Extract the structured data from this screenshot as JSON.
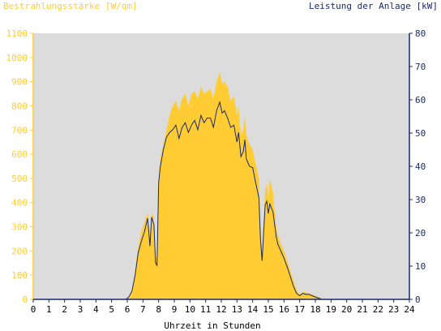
{
  "chart_data": {
    "type": "area",
    "left_axis_title": "Bestrahlungsstärke [W/qm]",
    "right_axis_title": "Leistung der Anlage [kW]",
    "xlabel": "Uhrzeit in Stunden",
    "x_ticks": [
      "0",
      "1",
      "2",
      "3",
      "4",
      "5",
      "6",
      "7",
      "8",
      "9",
      "10",
      "11",
      "12",
      "13",
      "14",
      "15",
      "16",
      "17",
      "18",
      "19",
      "20",
      "21",
      "22",
      "23",
      "24"
    ],
    "y_left_ticks": [
      "0",
      "100",
      "200",
      "300",
      "400",
      "500",
      "600",
      "700",
      "800",
      "900",
      "1000",
      "1100"
    ],
    "y_right_ticks": [
      "0",
      "10",
      "20",
      "30",
      "40",
      "50",
      "60",
      "70",
      "80"
    ],
    "xlim": [
      0,
      24
    ],
    "ylim_left": [
      0,
      1100
    ],
    "ylim_right": [
      0,
      80
    ],
    "grid": false,
    "series": [
      {
        "name": "Bestrahlungsstärke [W/qm]",
        "axis": "left",
        "kind": "area",
        "color": "#FFCC33",
        "x": [
          0,
          5.9,
          6.1,
          6.3,
          6.5,
          6.7,
          6.9,
          7.1,
          7.3,
          7.45,
          7.55,
          7.7,
          7.8,
          7.9,
          8.0,
          8.1,
          8.3,
          8.5,
          8.7,
          8.9,
          9.1,
          9.3,
          9.5,
          9.7,
          9.9,
          10.1,
          10.3,
          10.5,
          10.7,
          10.9,
          11.1,
          11.3,
          11.5,
          11.7,
          11.9,
          12.05,
          12.2,
          12.4,
          12.6,
          12.8,
          13.0,
          13.1,
          13.25,
          13.4,
          13.5,
          13.6,
          13.8,
          14.0,
          14.2,
          14.4,
          14.5,
          14.6,
          14.8,
          14.9,
          15.0,
          15.1,
          15.3,
          15.5,
          15.6,
          15.8,
          16.0,
          16.2,
          16.4,
          16.6,
          16.8,
          17.0,
          17.2,
          17.4,
          17.6,
          17.8,
          18.0,
          18.2,
          18.4,
          18.5,
          24
        ],
        "values": [
          0,
          0,
          10,
          40,
          120,
          220,
          280,
          320,
          360,
          250,
          360,
          340,
          180,
          170,
          500,
          580,
          640,
          700,
          760,
          800,
          820,
          780,
          830,
          850,
          800,
          850,
          860,
          830,
          880,
          850,
          860,
          870,
          830,
          900,
          940,
          890,
          900,
          880,
          820,
          840,
          760,
          800,
          680,
          700,
          760,
          680,
          640,
          620,
          560,
          500,
          300,
          180,
          450,
          480,
          420,
          500,
          440,
          300,
          270,
          230,
          200,
          160,
          120,
          80,
          40,
          20,
          30,
          30,
          25,
          20,
          15,
          10,
          5,
          0,
          0
        ]
      },
      {
        "name": "Leistung der Anlage [kW]",
        "axis": "right",
        "kind": "line",
        "color": "#1A2A6C",
        "x": [
          0,
          5.9,
          6.1,
          6.3,
          6.5,
          6.7,
          6.9,
          7.1,
          7.3,
          7.45,
          7.55,
          7.7,
          7.8,
          7.9,
          8.0,
          8.1,
          8.3,
          8.5,
          8.7,
          8.9,
          9.1,
          9.3,
          9.5,
          9.7,
          9.9,
          10.1,
          10.3,
          10.5,
          10.7,
          10.9,
          11.1,
          11.3,
          11.5,
          11.7,
          11.9,
          12.05,
          12.2,
          12.4,
          12.6,
          12.8,
          13.0,
          13.1,
          13.25,
          13.4,
          13.5,
          13.6,
          13.8,
          14.0,
          14.2,
          14.4,
          14.5,
          14.6,
          14.8,
          14.9,
          15.0,
          15.1,
          15.3,
          15.5,
          15.6,
          15.8,
          16.0,
          16.2,
          16.4,
          16.6,
          16.8,
          17.0,
          17.2,
          17.4,
          17.6,
          17.8,
          18.0,
          18.2,
          18.4,
          18.5,
          24
        ],
        "values": [
          0,
          0,
          0.7,
          2.5,
          7.3,
          14,
          17.5,
          20.4,
          24.4,
          16,
          24.7,
          22.5,
          11,
          10.2,
          34.9,
          39.6,
          45,
          48.7,
          50.2,
          51,
          52.4,
          48.4,
          51.7,
          53.1,
          50.2,
          52.4,
          53.8,
          51,
          55.3,
          53.1,
          54.5,
          54.5,
          51.7,
          56.7,
          59.3,
          56,
          56.7,
          54.5,
          51.7,
          52.4,
          47.3,
          50.2,
          42.9,
          44.4,
          48,
          42.2,
          40,
          39.6,
          34.9,
          30.5,
          18.2,
          11.6,
          28.4,
          29.5,
          25.8,
          28.7,
          26.2,
          18.9,
          16.7,
          14.5,
          12.4,
          9.8,
          6.9,
          4,
          1.8,
          1.1,
          1.8,
          1.5,
          1.5,
          1.1,
          0.7,
          0.4,
          0,
          0,
          0
        ]
      }
    ]
  }
}
